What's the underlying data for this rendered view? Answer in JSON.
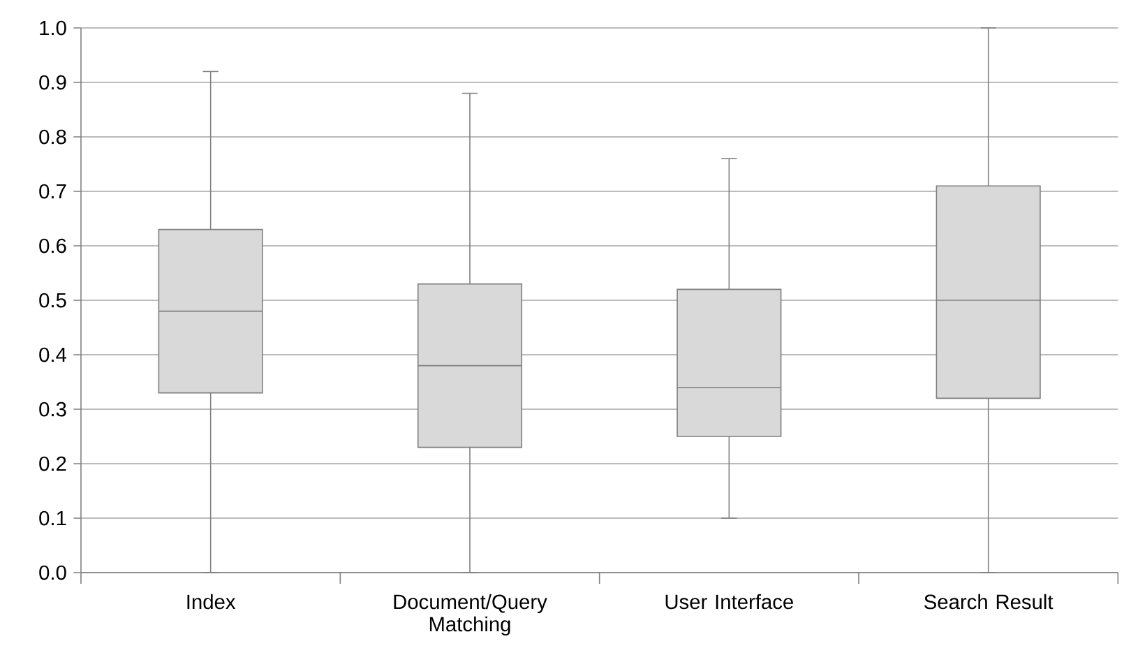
{
  "chart_data": {
    "type": "box",
    "categories": [
      "Index",
      "Document/Query Matching",
      "User Interface",
      "Search Result"
    ],
    "boxes": [
      {
        "low": 0,
        "q1": 0.33,
        "median": 0.48,
        "q3": 0.63,
        "high": 0.92
      },
      {
        "low": 0,
        "q1": 0.23,
        "median": 0.38,
        "q3": 0.53,
        "high": 0.88
      },
      {
        "low": 0.1,
        "q1": 0.25,
        "median": 0.34,
        "q3": 0.52,
        "high": 0.76
      },
      {
        "low": 0,
        "q1": 0.32,
        "median": 0.5,
        "q3": 0.71,
        "high": 1.0
      }
    ],
    "color": "#d9d9d9",
    "ylim": [
      0,
      1
    ],
    "yticks": [
      {
        "value": 0,
        "label": "0.0"
      },
      0.1,
      0.2,
      0.3,
      0.4,
      0.5,
      0.6,
      0.7,
      0.8,
      0.9,
      {
        "value": 1,
        "label": "1.0"
      }
    ],
    "grid": "y"
  }
}
